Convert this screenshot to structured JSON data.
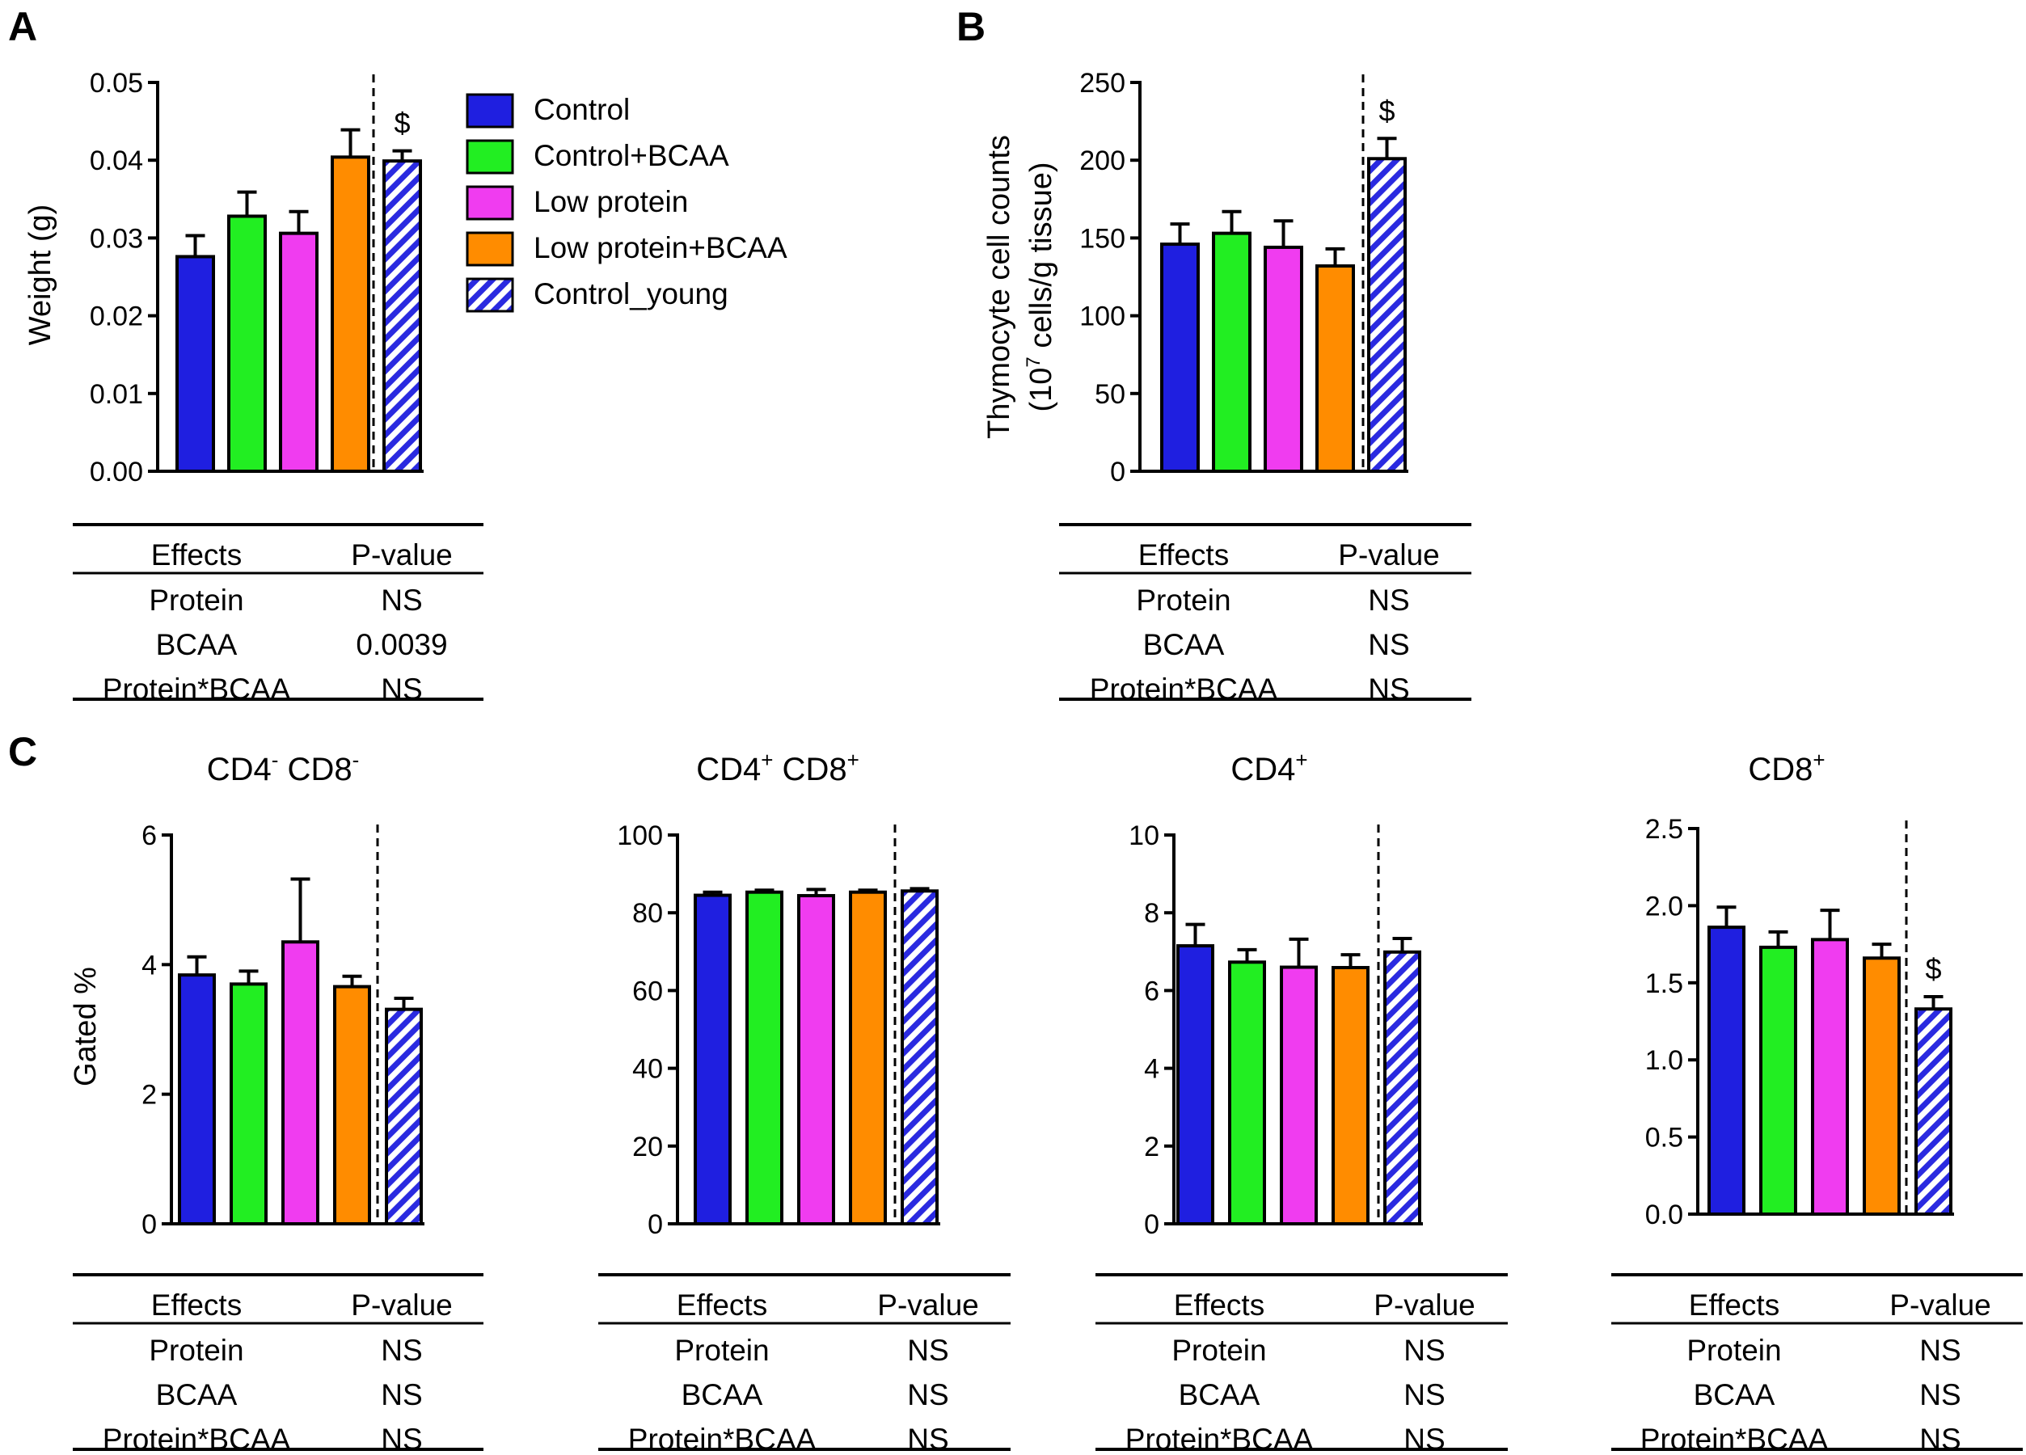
{
  "panels": {
    "a": "A",
    "b": "B",
    "c": "C"
  },
  "legend": [
    {
      "label": "Control",
      "color": "#1f1fe0",
      "hatched": false
    },
    {
      "label": "Control+BCAA",
      "color": "#22ee22",
      "hatched": false
    },
    {
      "label": "Low protein",
      "color": "#f03cf0",
      "hatched": false
    },
    {
      "label": "Low protein+BCAA",
      "color": "#ff8c00",
      "hatched": false
    },
    {
      "label": "Control_young",
      "color": "#2a2ae0",
      "hatched": true
    }
  ],
  "chart_data": [
    {
      "id": "A",
      "type": "bar",
      "title": "",
      "ylabel": "Weight (g)",
      "ylim": [
        0,
        0.05
      ],
      "yticks": [
        "0.00",
        "0.01",
        "0.02",
        "0.03",
        "0.04",
        "0.05"
      ],
      "categories": [
        "Control",
        "Control+BCAA",
        "Low protein",
        "Low protein+BCAA",
        "Control_young"
      ],
      "values": [
        0.0276,
        0.0328,
        0.0306,
        0.0404,
        0.0399
      ],
      "errors": [
        0.0027,
        0.0031,
        0.0028,
        0.0035,
        0.0013
      ],
      "markers": [
        "",
        "",
        "",
        "",
        "$"
      ],
      "table": {
        "headers": [
          "Effects",
          "P-value"
        ],
        "rows": [
          [
            "Protein",
            "NS"
          ],
          [
            "BCAA",
            "0.0039"
          ],
          [
            "Protein*BCAA",
            "NS"
          ]
        ]
      }
    },
    {
      "id": "B",
      "type": "bar",
      "title": "",
      "ylabel_line1": "Thymocyte cell counts",
      "ylabel_line2": "(10",
      "ylabel_sup": "7",
      "ylabel_line2b": " cells/g tissue)",
      "ylim": [
        0,
        250
      ],
      "yticks": [
        "0",
        "50",
        "100",
        "150",
        "200",
        "250"
      ],
      "categories": [
        "Control",
        "Control+BCAA",
        "Low protein",
        "Low protein+BCAA",
        "Control_young"
      ],
      "values": [
        146,
        153,
        144,
        132,
        201
      ],
      "errors": [
        13,
        14,
        17,
        11,
        13
      ],
      "markers": [
        "",
        "",
        "",
        "",
        "$"
      ],
      "table": {
        "headers": [
          "Effects",
          "P-value"
        ],
        "rows": [
          [
            "Protein",
            "NS"
          ],
          [
            "BCAA",
            "NS"
          ],
          [
            "Protein*BCAA",
            "NS"
          ]
        ]
      }
    },
    {
      "id": "C1",
      "type": "bar",
      "title_base1": "CD4",
      "title_sup1": "-",
      "title_base2": " CD8",
      "title_sup2": "-",
      "ylabel": "Gated %",
      "ylim": [
        0,
        6
      ],
      "yticks": [
        "0",
        "2",
        "4",
        "6"
      ],
      "categories": [
        "Control",
        "Control+BCAA",
        "Low protein",
        "Low protein+BCAA",
        "Control_young"
      ],
      "values": [
        3.84,
        3.7,
        4.35,
        3.66,
        3.31
      ],
      "errors": [
        0.28,
        0.2,
        0.97,
        0.16,
        0.17
      ],
      "markers": [
        "",
        "",
        "",
        "",
        ""
      ],
      "table": {
        "headers": [
          "Effects",
          "P-value"
        ],
        "rows": [
          [
            "Protein",
            "NS"
          ],
          [
            "BCAA",
            "NS"
          ],
          [
            "Protein*BCAA",
            "NS"
          ]
        ]
      }
    },
    {
      "id": "C2",
      "type": "bar",
      "title_base1": "CD4",
      "title_sup1": "+",
      "title_base2": " CD8",
      "title_sup2": "+",
      "ylabel": "",
      "ylim": [
        0,
        100
      ],
      "yticks": [
        "0",
        "20",
        "40",
        "60",
        "80",
        "100"
      ],
      "categories": [
        "Control",
        "Control+BCAA",
        "Low protein",
        "Low protein+BCAA",
        "Control_young"
      ],
      "values": [
        84.5,
        85.3,
        84.4,
        85.3,
        85.6
      ],
      "errors": [
        0.8,
        0.5,
        1.6,
        0.5,
        0.6
      ],
      "markers": [
        "",
        "",
        "",
        "",
        ""
      ],
      "table": {
        "headers": [
          "Effects",
          "P-value"
        ],
        "rows": [
          [
            "Protein",
            "NS"
          ],
          [
            "BCAA",
            "NS"
          ],
          [
            "Protein*BCAA",
            "NS"
          ]
        ]
      }
    },
    {
      "id": "C3",
      "type": "bar",
      "title_base1": "CD4",
      "title_sup1": "+",
      "title_base2": "",
      "title_sup2": "",
      "ylabel": "",
      "ylim": [
        0,
        10
      ],
      "yticks": [
        "0",
        "2",
        "4",
        "6",
        "8",
        "10"
      ],
      "categories": [
        "Control",
        "Control+BCAA",
        "Low protein",
        "Low protein+BCAA",
        "Control_young"
      ],
      "values": [
        7.15,
        6.73,
        6.6,
        6.59,
        6.99
      ],
      "errors": [
        0.55,
        0.32,
        0.72,
        0.33,
        0.35
      ],
      "markers": [
        "",
        "",
        "",
        "",
        ""
      ],
      "table": {
        "headers": [
          "Effects",
          "P-value"
        ],
        "rows": [
          [
            "Protein",
            "NS"
          ],
          [
            "BCAA",
            "NS"
          ],
          [
            "Protein*BCAA",
            "NS"
          ]
        ]
      }
    },
    {
      "id": "C4",
      "type": "bar",
      "title_base1": "CD8",
      "title_sup1": "+",
      "title_base2": "",
      "title_sup2": "",
      "ylabel": "",
      "ylim": [
        0,
        2.5
      ],
      "yticks": [
        "0.0",
        "0.5",
        "1.0",
        "1.5",
        "2.0",
        "2.5"
      ],
      "categories": [
        "Control",
        "Control+BCAA",
        "Low protein",
        "Low protein+BCAA",
        "Control_young"
      ],
      "values": [
        1.86,
        1.73,
        1.78,
        1.66,
        1.33
      ],
      "errors": [
        0.13,
        0.1,
        0.19,
        0.09,
        0.08
      ],
      "markers": [
        "",
        "",
        "",
        "",
        "$"
      ],
      "table": {
        "headers": [
          "Effects",
          "P-value"
        ],
        "rows": [
          [
            "Protein",
            "NS"
          ],
          [
            "BCAA",
            "NS"
          ],
          [
            "Protein*BCAA",
            "NS"
          ]
        ]
      }
    }
  ]
}
